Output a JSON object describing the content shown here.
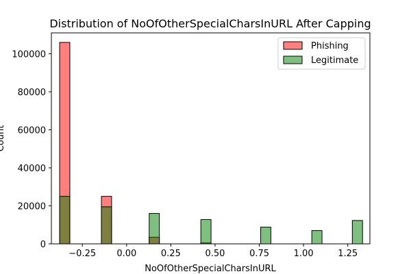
{
  "chart_data": {
    "type": "bar",
    "title": "Distribution of NoOfOtherSpecialCharsInURL After Capping",
    "xlabel": "NoOfOtherSpecialCharsInURL",
    "ylabel": "Count",
    "xlim": [
      -0.425,
      1.375
    ],
    "ylim": [
      0,
      111000
    ],
    "x_ticks": [
      -0.25,
      0.0,
      0.25,
      0.5,
      0.75,
      1.0,
      1.25
    ],
    "x_tick_labels": [
      "−0.25",
      "0.00",
      "0.25",
      "0.50",
      "0.75",
      "1.00",
      "1.25"
    ],
    "y_ticks": [
      0,
      20000,
      40000,
      60000,
      80000,
      100000
    ],
    "y_tick_labels": [
      "0",
      "20000",
      "40000",
      "60000",
      "80000",
      "100000"
    ],
    "bin_width": 0.0576,
    "legend_position": "top-right",
    "grid": false,
    "series": [
      {
        "name": "Phishing",
        "color": "#ff0000",
        "opacity": 0.5,
        "x": [
          -0.3495,
          -0.1135,
          0.1565,
          0.4485,
          0.7865,
          1.0755,
          1.3045
        ],
        "values": [
          106000,
          25000,
          3500,
          500,
          0,
          0,
          0
        ]
      },
      {
        "name": "Legitimate",
        "color": "#008000",
        "opacity": 0.5,
        "x": [
          -0.3495,
          -0.1135,
          0.1565,
          0.4485,
          0.7865,
          1.0755,
          1.3045
        ],
        "values": [
          25000,
          19500,
          16000,
          12800,
          8800,
          7000,
          12300
        ]
      }
    ]
  }
}
